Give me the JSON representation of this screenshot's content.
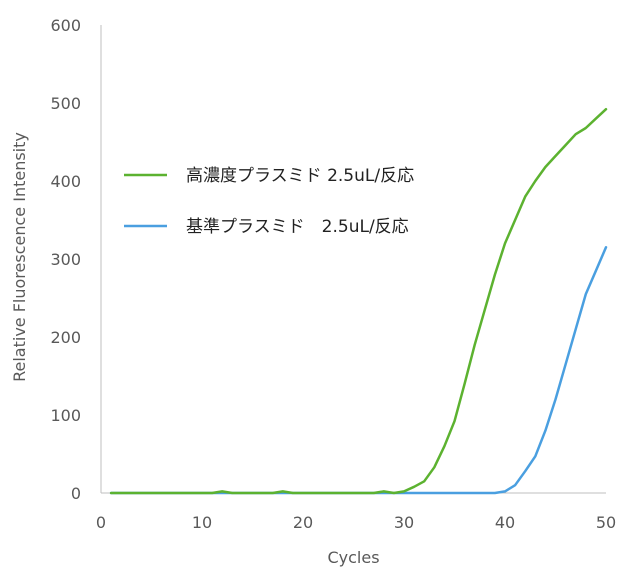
{
  "chart_data": {
    "type": "line",
    "title": "",
    "xlabel": "Cycles",
    "ylabel": "Relative Fluorescence Intensity",
    "xlim": [
      0,
      50
    ],
    "ylim": [
      0,
      600
    ],
    "xticks": [
      0,
      10,
      20,
      30,
      40,
      50
    ],
    "yticks": [
      0,
      100,
      200,
      300,
      400,
      500,
      600
    ],
    "grid": false,
    "legend_position": "top-left",
    "series": [
      {
        "name": "高濃度プラスミド 2.5uL/反応",
        "color": "#5cb230",
        "x": [
          1,
          8,
          11,
          12,
          13,
          17,
          18,
          19,
          27,
          28,
          29,
          30,
          31,
          32,
          33,
          34,
          35,
          36,
          37,
          38,
          39,
          40,
          41,
          42,
          43,
          44,
          45,
          46,
          47,
          48,
          49,
          50
        ],
        "y": [
          0,
          0,
          0,
          2,
          0,
          0,
          2,
          0,
          0,
          2,
          0,
          2,
          8,
          15,
          33,
          60,
          92,
          140,
          190,
          235,
          280,
          320,
          350,
          380,
          400,
          418,
          432,
          446,
          460,
          468,
          480,
          492
        ]
      },
      {
        "name": "基準プラスミド　2.5uL/反応",
        "color": "#4a9fe0",
        "x": [
          1,
          10,
          20,
          30,
          38,
          39,
          40,
          41,
          42,
          43,
          44,
          45,
          46,
          47,
          48,
          49,
          50
        ],
        "y": [
          0,
          0,
          0,
          0,
          0,
          0,
          2,
          10,
          28,
          47,
          80,
          120,
          165,
          210,
          255,
          285,
          315
        ]
      }
    ]
  }
}
